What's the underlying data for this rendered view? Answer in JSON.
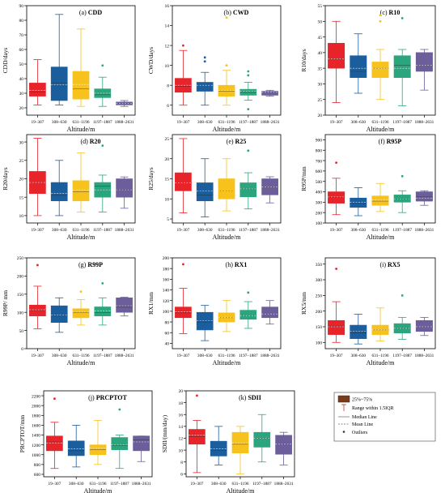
{
  "figure": {
    "categories": [
      "19–307",
      "308–630",
      "631–1196",
      "1197–1887",
      "1888–2631"
    ],
    "xlabel": "Altitude/m",
    "colors": [
      "#e8242b",
      "#1b5e9e",
      "#f7c21b",
      "#2aa57e",
      "#6b5e9a"
    ],
    "legend": {
      "box_label": "25%~75%",
      "whisker_label": "Range within 1.5IQR",
      "median_label": "Median Line",
      "mean_label": "Mean Line",
      "outlier_label": "Outliers"
    }
  },
  "chart_data": [
    {
      "type": "box",
      "panel": "(a)",
      "title": "CDD",
      "ylabel": "CDD/days",
      "ylim": [
        15,
        90
      ],
      "yticks": [
        20,
        30,
        40,
        50,
        60,
        70,
        80,
        90
      ],
      "boxes": [
        {
          "low": 22,
          "q1": 28,
          "median": 31,
          "mean": 32,
          "q3": 37,
          "high": 53,
          "outliers": []
        },
        {
          "low": 22,
          "q1": 25,
          "median": 37,
          "mean": 36,
          "q3": 48,
          "high": 84,
          "outliers": []
        },
        {
          "low": 21,
          "q1": 26,
          "median": 33,
          "mean": 36,
          "q3": 45,
          "high": 74,
          "outliers": []
        },
        {
          "low": 21,
          "q1": 27,
          "median": 29,
          "mean": 30,
          "q3": 33,
          "high": 41,
          "outliers": [
            49
          ]
        },
        {
          "low": 21,
          "q1": 22,
          "median": 23,
          "mean": 23,
          "q3": 24,
          "high": 25,
          "outliers": []
        }
      ]
    },
    {
      "type": "box",
      "panel": "(b)",
      "title": "CWD",
      "ylabel": "CWD/days",
      "ylim": [
        5,
        16
      ],
      "yticks": [
        6,
        8,
        10,
        12,
        14,
        16
      ],
      "boxes": [
        {
          "low": 6.0,
          "q1": 7.3,
          "median": 7.9,
          "mean": 8.0,
          "q3": 8.7,
          "high": 11.5,
          "outliers": [
            12.0
          ]
        },
        {
          "low": 6.0,
          "q1": 7.4,
          "median": 8.0,
          "mean": 8.0,
          "q3": 8.3,
          "high": 9.3,
          "outliers": [
            10.4,
            10.8
          ]
        },
        {
          "low": 6.0,
          "q1": 6.9,
          "median": 7.4,
          "mean": 7.5,
          "q3": 8.0,
          "high": 9.5,
          "outliers": [
            10.0,
            14.8
          ]
        },
        {
          "low": 6.5,
          "q1": 7.0,
          "median": 7.3,
          "mean": 7.4,
          "q3": 7.6,
          "high": 8.3,
          "outliers": [
            9.0,
            9.4,
            5.6
          ]
        },
        {
          "low": 6.9,
          "q1": 7.0,
          "median": 7.3,
          "mean": 7.3,
          "q3": 7.4,
          "high": 7.5,
          "outliers": []
        }
      ]
    },
    {
      "type": "box",
      "panel": "(c)",
      "title": "R10",
      "ylabel": "R10/days",
      "ylim": [
        20,
        55
      ],
      "yticks": [
        20,
        25,
        30,
        35,
        40,
        45,
        50,
        55
      ],
      "boxes": [
        {
          "low": 24,
          "q1": 35,
          "median": 38,
          "mean": 38,
          "q3": 43,
          "high": 50,
          "outliers": []
        },
        {
          "low": 27,
          "q1": 32,
          "median": 34,
          "mean": 35,
          "q3": 39,
          "high": 46,
          "outliers": []
        },
        {
          "low": 25,
          "q1": 32,
          "median": 35,
          "mean": 35,
          "q3": 37,
          "high": 41,
          "outliers": [
            50,
            52
          ]
        },
        {
          "low": 23,
          "q1": 32,
          "median": 36,
          "mean": 35,
          "q3": 39,
          "high": 41,
          "outliers": [
            51
          ]
        },
        {
          "low": 28,
          "q1": 34,
          "median": 36,
          "mean": 36,
          "q3": 40,
          "high": 41,
          "outliers": []
        }
      ]
    },
    {
      "type": "box",
      "panel": "(d)",
      "title": "R20",
      "ylabel": "R20/days",
      "ylim": [
        8,
        32
      ],
      "yticks": [
        10,
        15,
        20,
        25,
        30
      ],
      "boxes": [
        {
          "low": 10,
          "q1": 16,
          "median": 19,
          "mean": 19,
          "q3": 22,
          "high": 31,
          "outliers": []
        },
        {
          "low": 10,
          "q1": 14,
          "median": 15.5,
          "mean": 16,
          "q3": 19,
          "high": 25,
          "outliers": []
        },
        {
          "low": 11,
          "q1": 14,
          "median": 16.5,
          "mean": 17,
          "q3": 19.5,
          "high": 27,
          "outliers": []
        },
        {
          "low": 11,
          "q1": 15,
          "median": 18,
          "mean": 17,
          "q3": 19,
          "high": 21,
          "outliers": [
            29
          ]
        },
        {
          "low": 12,
          "q1": 15,
          "median": 17,
          "mean": 17,
          "q3": 20,
          "high": 20.5,
          "outliers": []
        }
      ]
    },
    {
      "type": "box",
      "panel": "(e)",
      "title": "R25",
      "ylabel": "R25/days",
      "ylim": [
        4,
        26
      ],
      "yticks": [
        5,
        10,
        15,
        20,
        25
      ],
      "boxes": [
        {
          "low": 6.5,
          "q1": 12,
          "median": 14,
          "mean": 14,
          "q3": 16.5,
          "high": 25,
          "outliers": []
        },
        {
          "low": 5.5,
          "q1": 9.5,
          "median": 11,
          "mean": 12,
          "q3": 14,
          "high": 20,
          "outliers": []
        },
        {
          "low": 7,
          "q1": 10,
          "median": 12,
          "mean": 12,
          "q3": 15,
          "high": 20,
          "outliers": []
        },
        {
          "low": 7.5,
          "q1": 10.5,
          "median": 12.5,
          "mean": 12.5,
          "q3": 14,
          "high": 16.5,
          "outliers": [
            22
          ]
        },
        {
          "low": 9,
          "q1": 11,
          "median": 13,
          "mean": 13,
          "q3": 15,
          "high": 15.5,
          "outliers": []
        }
      ]
    },
    {
      "type": "box",
      "panel": "(f)",
      "title": "R95P",
      "ylabel": "R95P/mm",
      "ylim": [
        100,
        950
      ],
      "yticks": [
        100,
        200,
        300,
        400,
        500,
        600,
        700,
        800,
        900
      ],
      "boxes": [
        {
          "low": 180,
          "q1": 290,
          "median": 345,
          "mean": 350,
          "q3": 400,
          "high": 530,
          "outliers": [
            680
          ]
        },
        {
          "low": 170,
          "q1": 250,
          "median": 290,
          "mean": 300,
          "q3": 340,
          "high": 440,
          "outliers": []
        },
        {
          "low": 210,
          "q1": 270,
          "median": 310,
          "mean": 320,
          "q3": 360,
          "high": 480,
          "outliers": []
        },
        {
          "low": 200,
          "q1": 300,
          "median": 330,
          "mean": 330,
          "q3": 370,
          "high": 410,
          "outliers": [
            550
          ]
        },
        {
          "low": 270,
          "q1": 310,
          "median": 350,
          "mean": 340,
          "q3": 400,
          "high": 410,
          "outliers": []
        }
      ]
    },
    {
      "type": "box",
      "panel": "(g)",
      "title": "R99P",
      "ylabel": "R99P/ mm",
      "ylim": [
        0,
        250
      ],
      "yticks": [
        0,
        50,
        100,
        150,
        200,
        250
      ],
      "boxes": [
        {
          "low": 55,
          "q1": 90,
          "median": 105,
          "mean": 107,
          "q3": 120,
          "high": 172,
          "outliers": [
            230
          ]
        },
        {
          "low": 45,
          "q1": 72,
          "median": 90,
          "mean": 92,
          "q3": 118,
          "high": 140,
          "outliers": []
        },
        {
          "low": 65,
          "q1": 85,
          "median": 100,
          "mean": 102,
          "q3": 110,
          "high": 135,
          "outliers": [
            157
          ]
        },
        {
          "low": 65,
          "q1": 90,
          "median": 100,
          "mean": 104,
          "q3": 115,
          "high": 140,
          "outliers": [
            180
          ]
        },
        {
          "low": 90,
          "q1": 100,
          "median": 115,
          "mean": 118,
          "q3": 140,
          "high": 142,
          "outliers": []
        }
      ]
    },
    {
      "type": "box",
      "panel": "(h)",
      "title": "RX1",
      "ylabel": "RX1/mm",
      "ylim": [
        30,
        200
      ],
      "yticks": [
        40,
        60,
        80,
        100,
        120,
        140,
        160,
        180,
        200
      ],
      "boxes": [
        {
          "low": 58,
          "q1": 88,
          "median": 97,
          "mean": 99,
          "q3": 108,
          "high": 143,
          "outliers": [
            188
          ]
        },
        {
          "low": 45,
          "q1": 65,
          "median": 80,
          "mean": 82,
          "q3": 98,
          "high": 111,
          "outliers": []
        },
        {
          "low": 62,
          "q1": 80,
          "median": 88,
          "mean": 88,
          "q3": 97,
          "high": 120,
          "outliers": []
        },
        {
          "low": 68,
          "q1": 85,
          "median": 92,
          "mean": 92,
          "q3": 102,
          "high": 118,
          "outliers": [
            135
          ]
        },
        {
          "low": 76,
          "q1": 88,
          "median": 95,
          "mean": 95,
          "q3": 108,
          "high": 120,
          "outliers": []
        }
      ]
    },
    {
      "type": "box",
      "panel": "(i)",
      "title": "RX5",
      "ylabel": "RX5/mm",
      "ylim": [
        80,
        370
      ],
      "yticks": [
        100,
        150,
        200,
        250,
        300,
        350
      ],
      "boxes": [
        {
          "low": 100,
          "q1": 125,
          "median": 152,
          "mean": 150,
          "q3": 170,
          "high": 230,
          "outliers": [
            335
          ]
        },
        {
          "low": 95,
          "q1": 112,
          "median": 130,
          "mean": 135,
          "q3": 155,
          "high": 190,
          "outliers": []
        },
        {
          "low": 105,
          "q1": 125,
          "median": 140,
          "mean": 140,
          "q3": 155,
          "high": 210,
          "outliers": []
        },
        {
          "low": 110,
          "q1": 130,
          "median": 145,
          "mean": 145,
          "q3": 160,
          "high": 180,
          "outliers": [
            250
          ]
        },
        {
          "low": 122,
          "q1": 135,
          "median": 150,
          "mean": 150,
          "q3": 170,
          "high": 180,
          "outliers": []
        }
      ]
    },
    {
      "type": "box",
      "panel": "(j)",
      "title": "PRCPTOT",
      "ylabel": "PRCPTOT/mm",
      "ylim": [
        550,
        2300
      ],
      "yticks": [
        600,
        800,
        1000,
        1200,
        1400,
        1600,
        1800,
        2000,
        2200
      ],
      "boxes": [
        {
          "low": 720,
          "q1": 1080,
          "median": 1260,
          "mean": 1240,
          "q3": 1380,
          "high": 1660,
          "outliers": [
            2140
          ]
        },
        {
          "low": 750,
          "q1": 980,
          "median": 1080,
          "mean": 1120,
          "q3": 1280,
          "high": 1600,
          "outliers": []
        },
        {
          "low": 800,
          "q1": 1000,
          "median": 1100,
          "mean": 1130,
          "q3": 1200,
          "high": 1700,
          "outliers": []
        },
        {
          "low": 720,
          "q1": 1100,
          "median": 1190,
          "mean": 1200,
          "q3": 1350,
          "high": 1400,
          "outliers": [
            1920
          ]
        },
        {
          "low": 860,
          "q1": 1080,
          "median": 1300,
          "mean": 1260,
          "q3": 1380,
          "high": 1380,
          "outliers": []
        }
      ]
    },
    {
      "type": "box",
      "panel": "(k)",
      "title": "SDII",
      "ylabel": "SDII/(mm/day)",
      "ylim": [
        5.5,
        20
      ],
      "yticks": [
        6,
        8,
        10,
        12,
        14,
        16,
        18,
        20
      ],
      "boxes": [
        {
          "low": 6.2,
          "q1": 11,
          "median": 12.3,
          "mean": 12.5,
          "q3": 13.5,
          "high": 15,
          "outliers": [
            19.2
          ]
        },
        {
          "low": 7.5,
          "q1": 9,
          "median": 10,
          "mean": 10.2,
          "q3": 11.5,
          "high": 14,
          "outliers": []
        },
        {
          "low": 6,
          "q1": 9.5,
          "median": 11,
          "mean": 11.2,
          "q3": 13,
          "high": 14,
          "outliers": []
        },
        {
          "low": 8,
          "q1": 10.5,
          "median": 12,
          "mean": 12,
          "q3": 13,
          "high": 16,
          "outliers": []
        },
        {
          "low": 7.5,
          "q1": 9.3,
          "median": 11,
          "mean": 11,
          "q3": 12.5,
          "high": 13,
          "outliers": []
        }
      ]
    }
  ]
}
